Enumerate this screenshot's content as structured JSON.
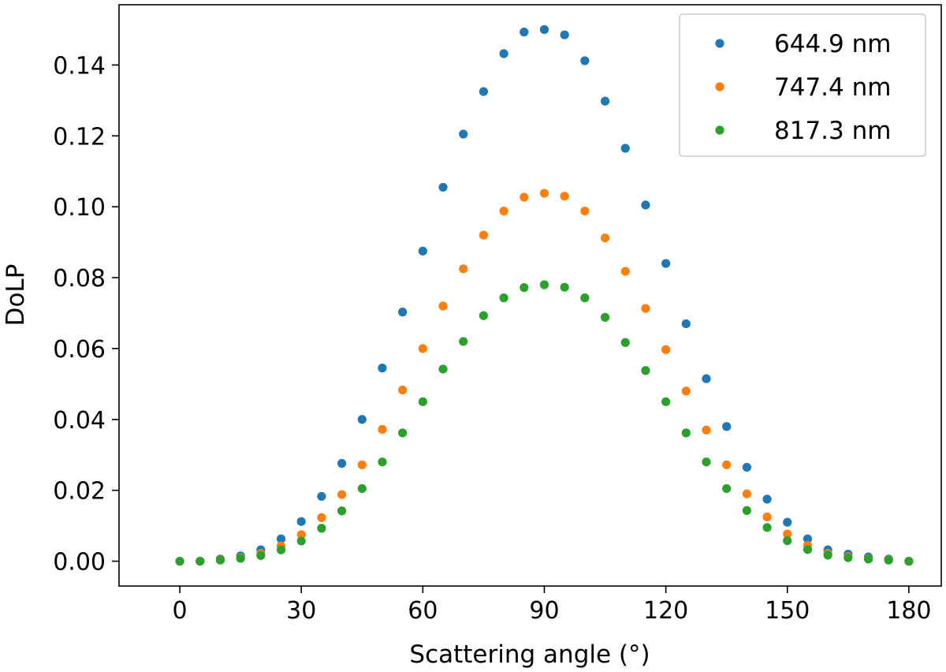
{
  "chart_data": {
    "type": "scatter",
    "title": "",
    "xlabel": "Scattering angle (°)",
    "ylabel": "DoLP",
    "xlim": [
      -15,
      188
    ],
    "ylim": [
      -0.007,
      0.157
    ],
    "xticks": [
      0,
      30,
      60,
      90,
      120,
      150,
      180
    ],
    "xtick_labels": [
      "0",
      "30",
      "60",
      "90",
      "120",
      "150",
      "180"
    ],
    "yticks": [
      0.0,
      0.02,
      0.04,
      0.06,
      0.08,
      0.1,
      0.12,
      0.14
    ],
    "ytick_labels": [
      "0.00",
      "0.02",
      "0.04",
      "0.06",
      "0.08",
      "0.10",
      "0.12",
      "0.14"
    ],
    "grid": false,
    "legend_position": "top-right",
    "x": [
      0,
      5,
      10,
      15,
      20,
      25,
      30,
      35,
      40,
      45,
      50,
      55,
      60,
      65,
      70,
      75,
      80,
      85,
      90,
      95,
      100,
      105,
      110,
      115,
      120,
      125,
      130,
      135,
      140,
      145,
      150,
      155,
      160,
      165,
      170,
      175,
      180
    ],
    "series": [
      {
        "name": "644.9 nm",
        "color": "#1f77b4",
        "values": [
          0.0,
          0.0,
          0.0006,
          0.0015,
          0.0032,
          0.0063,
          0.0112,
          0.0183,
          0.0276,
          0.04,
          0.0545,
          0.0703,
          0.0875,
          0.1055,
          0.1205,
          0.1325,
          0.1432,
          0.1493,
          0.15,
          0.1485,
          0.1412,
          0.1298,
          0.1165,
          0.1005,
          0.084,
          0.067,
          0.0515,
          0.038,
          0.0265,
          0.0175,
          0.011,
          0.0063,
          0.0032,
          0.002,
          0.0012,
          0.0006,
          0.0
        ]
      },
      {
        "name": "747.4 nm",
        "color": "#ff7f0e",
        "values": [
          0.0,
          0.0,
          0.0004,
          0.001,
          0.0022,
          0.0043,
          0.0075,
          0.0123,
          0.0188,
          0.0272,
          0.0372,
          0.0483,
          0.06,
          0.072,
          0.0825,
          0.092,
          0.0988,
          0.1027,
          0.1038,
          0.103,
          0.0988,
          0.0912,
          0.0818,
          0.0713,
          0.0597,
          0.048,
          0.037,
          0.0272,
          0.019,
          0.0125,
          0.0077,
          0.0045,
          0.0022,
          0.0013,
          0.0007,
          0.0004,
          0.0
        ]
      },
      {
        "name": "817.3 nm",
        "color": "#2ca02c",
        "values": [
          0.0,
          0.0,
          0.0003,
          0.0008,
          0.0016,
          0.0032,
          0.0057,
          0.0093,
          0.0142,
          0.0205,
          0.028,
          0.0362,
          0.045,
          0.0542,
          0.062,
          0.0693,
          0.0743,
          0.0772,
          0.078,
          0.0773,
          0.0743,
          0.0688,
          0.0617,
          0.0538,
          0.045,
          0.0362,
          0.028,
          0.0205,
          0.0143,
          0.0095,
          0.0058,
          0.0033,
          0.0017,
          0.001,
          0.0006,
          0.0003,
          0.0
        ]
      }
    ]
  }
}
